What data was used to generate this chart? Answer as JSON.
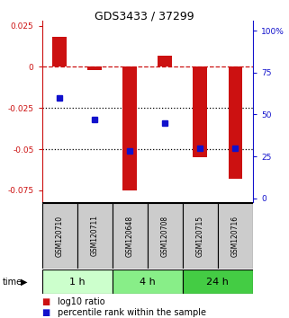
{
  "title": "GDS3433 / 37299",
  "samples": [
    "GSM120710",
    "GSM120711",
    "GSM120648",
    "GSM120708",
    "GSM120715",
    "GSM120716"
  ],
  "log10_ratio": [
    0.018,
    -0.002,
    -0.075,
    0.007,
    -0.055,
    -0.068
  ],
  "percentile_rank": [
    60,
    47,
    28,
    45,
    30,
    30
  ],
  "ylim_left": [
    -0.082,
    0.028
  ],
  "ylim_right": [
    -2.2,
    106
  ],
  "yticks_left": [
    0.025,
    0.0,
    -0.025,
    -0.05,
    -0.075
  ],
  "yticks_right": [
    100,
    75,
    50,
    25,
    0
  ],
  "ytick_labels_left": [
    "0.025",
    "0",
    "-0.025",
    "-0.05",
    "-0.075"
  ],
  "ytick_labels_right": [
    "100%",
    "75",
    "50",
    "25",
    "0"
  ],
  "hlines_dotted": [
    -0.025,
    -0.05
  ],
  "hline_dash": 0.0,
  "time_groups": [
    {
      "label": "1 h",
      "start": 0,
      "end": 2,
      "color": "#ccffcc"
    },
    {
      "label": "4 h",
      "start": 2,
      "end": 4,
      "color": "#88ee88"
    },
    {
      "label": "24 h",
      "start": 4,
      "end": 6,
      "color": "#44cc44"
    }
  ],
  "bar_color": "#cc1111",
  "blue_color": "#1111cc",
  "bar_width": 0.4,
  "bg_color": "#ffffff",
  "label_red": "log10 ratio",
  "label_blue": "percentile rank within the sample",
  "left_axis_color": "#cc1111",
  "right_axis_color": "#1111cc",
  "sample_box_color": "#cccccc",
  "sample_box_border": "#000000",
  "title_fontsize": 9,
  "tick_fontsize": 6.5,
  "sample_fontsize": 5.5,
  "time_fontsize": 8,
  "legend_fontsize": 7
}
